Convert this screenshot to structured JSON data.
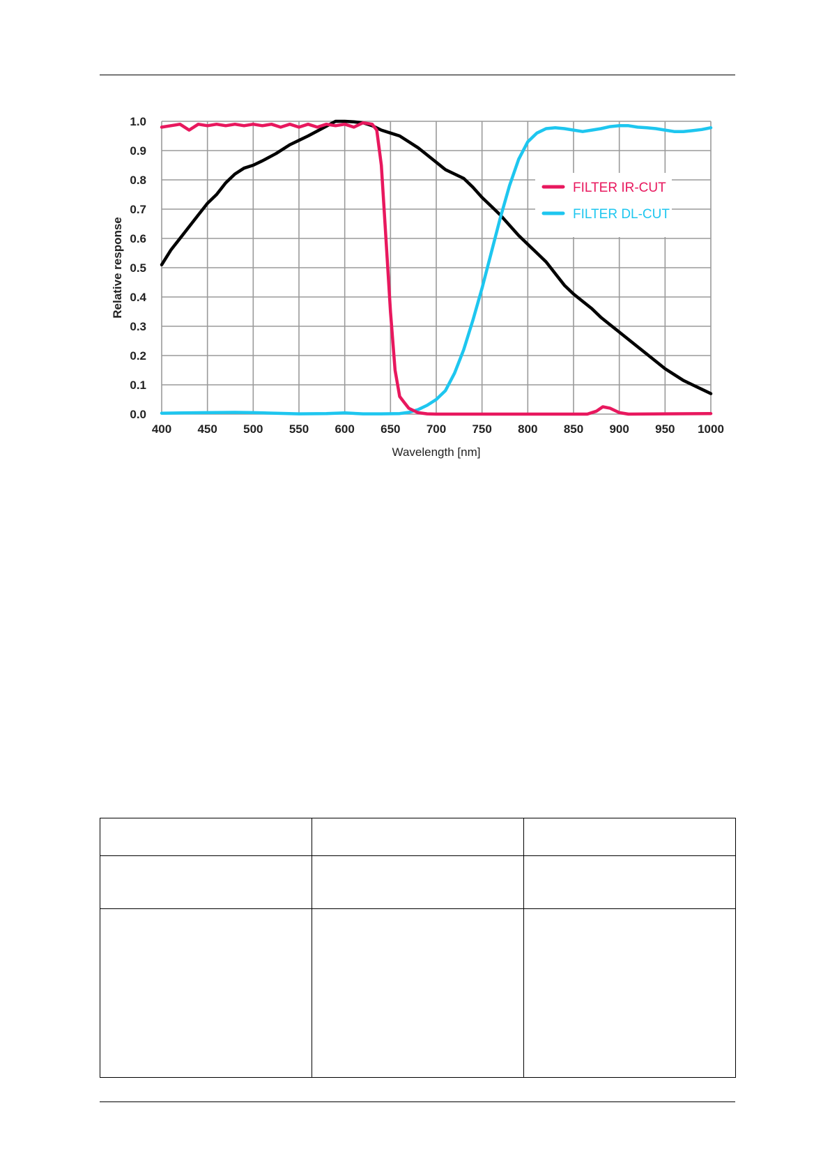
{
  "chart_data": {
    "type": "line",
    "xlabel": "Wavelength [nm]",
    "ylabel": "Relative response",
    "xlim": [
      400,
      1000
    ],
    "ylim": [
      0,
      1.0
    ],
    "x_ticks": [
      "400",
      "450",
      "500",
      "550",
      "600",
      "650",
      "700",
      "750",
      "800",
      "850",
      "900",
      "950",
      "1000"
    ],
    "y_ticks": [
      "0.0",
      "0.1",
      "0.2",
      "0.3",
      "0.4",
      "0.5",
      "0.6",
      "0.7",
      "0.8",
      "0.9",
      "1.0"
    ],
    "grid": true,
    "legend_position": "upper-right",
    "series": [
      {
        "name": "",
        "color": "#000000",
        "x": [
          400,
          410,
          425,
          440,
          450,
          460,
          470,
          480,
          490,
          500,
          510,
          525,
          540,
          550,
          560,
          575,
          590,
          600,
          610,
          620,
          630,
          640,
          650,
          660,
          670,
          680,
          690,
          700,
          710,
          720,
          730,
          740,
          750,
          760,
          770,
          780,
          790,
          800,
          810,
          820,
          830,
          840,
          850,
          860,
          870,
          880,
          890,
          900,
          910,
          920,
          930,
          940,
          950,
          960,
          970,
          980,
          990,
          1000
        ],
        "y": [
          0.51,
          0.56,
          0.62,
          0.68,
          0.72,
          0.75,
          0.79,
          0.82,
          0.84,
          0.85,
          0.865,
          0.89,
          0.92,
          0.935,
          0.95,
          0.975,
          1.0,
          1.0,
          0.998,
          0.995,
          0.985,
          0.97,
          0.96,
          0.95,
          0.93,
          0.91,
          0.885,
          0.86,
          0.835,
          0.82,
          0.805,
          0.775,
          0.74,
          0.71,
          0.68,
          0.645,
          0.61,
          0.58,
          0.55,
          0.52,
          0.48,
          0.44,
          0.41,
          0.385,
          0.36,
          0.33,
          0.305,
          0.28,
          0.255,
          0.23,
          0.205,
          0.18,
          0.155,
          0.135,
          0.115,
          0.1,
          0.085,
          0.07
        ]
      },
      {
        "name": "FILTER IR-CUT",
        "color": "#e8185e",
        "x": [
          400,
          410,
          420,
          430,
          440,
          450,
          460,
          470,
          480,
          490,
          500,
          510,
          520,
          530,
          540,
          550,
          560,
          570,
          580,
          590,
          600,
          610,
          620,
          630,
          635,
          640,
          645,
          650,
          655,
          660,
          665,
          670,
          680,
          690,
          700,
          750,
          800,
          850,
          865,
          875,
          882,
          890,
          900,
          910,
          950,
          1000
        ],
        "y": [
          0.98,
          0.985,
          0.99,
          0.97,
          0.99,
          0.985,
          0.99,
          0.985,
          0.99,
          0.985,
          0.99,
          0.985,
          0.99,
          0.98,
          0.99,
          0.98,
          0.99,
          0.98,
          0.99,
          0.985,
          0.99,
          0.98,
          0.995,
          0.99,
          0.97,
          0.85,
          0.6,
          0.35,
          0.15,
          0.06,
          0.04,
          0.02,
          0.005,
          0.001,
          0,
          0,
          0,
          0,
          0,
          0.01,
          0.025,
          0.02,
          0.005,
          0,
          0.001,
          0.002
        ]
      },
      {
        "name": "FILTER DL-CUT",
        "color": "#1ec6ef",
        "x": [
          400,
          450,
          480,
          500,
          550,
          580,
          600,
          620,
          640,
          660,
          670,
          680,
          690,
          700,
          710,
          720,
          730,
          740,
          750,
          760,
          770,
          780,
          790,
          800,
          810,
          820,
          830,
          840,
          850,
          860,
          870,
          880,
          890,
          900,
          910,
          920,
          930,
          940,
          950,
          960,
          970,
          980,
          990,
          1000
        ],
        "y": [
          0.003,
          0.005,
          0.006,
          0.005,
          0.001,
          0.002,
          0.004,
          0.001,
          0.001,
          0.002,
          0.006,
          0.015,
          0.03,
          0.05,
          0.08,
          0.14,
          0.22,
          0.32,
          0.43,
          0.55,
          0.67,
          0.78,
          0.87,
          0.93,
          0.96,
          0.975,
          0.978,
          0.975,
          0.97,
          0.965,
          0.97,
          0.975,
          0.982,
          0.985,
          0.985,
          0.98,
          0.978,
          0.975,
          0.97,
          0.965,
          0.965,
          0.968,
          0.972,
          0.978
        ]
      }
    ]
  },
  "table": {
    "rows": [
      [
        "",
        "",
        ""
      ],
      [
        "",
        "",
        ""
      ],
      [
        "",
        "",
        ""
      ]
    ]
  }
}
